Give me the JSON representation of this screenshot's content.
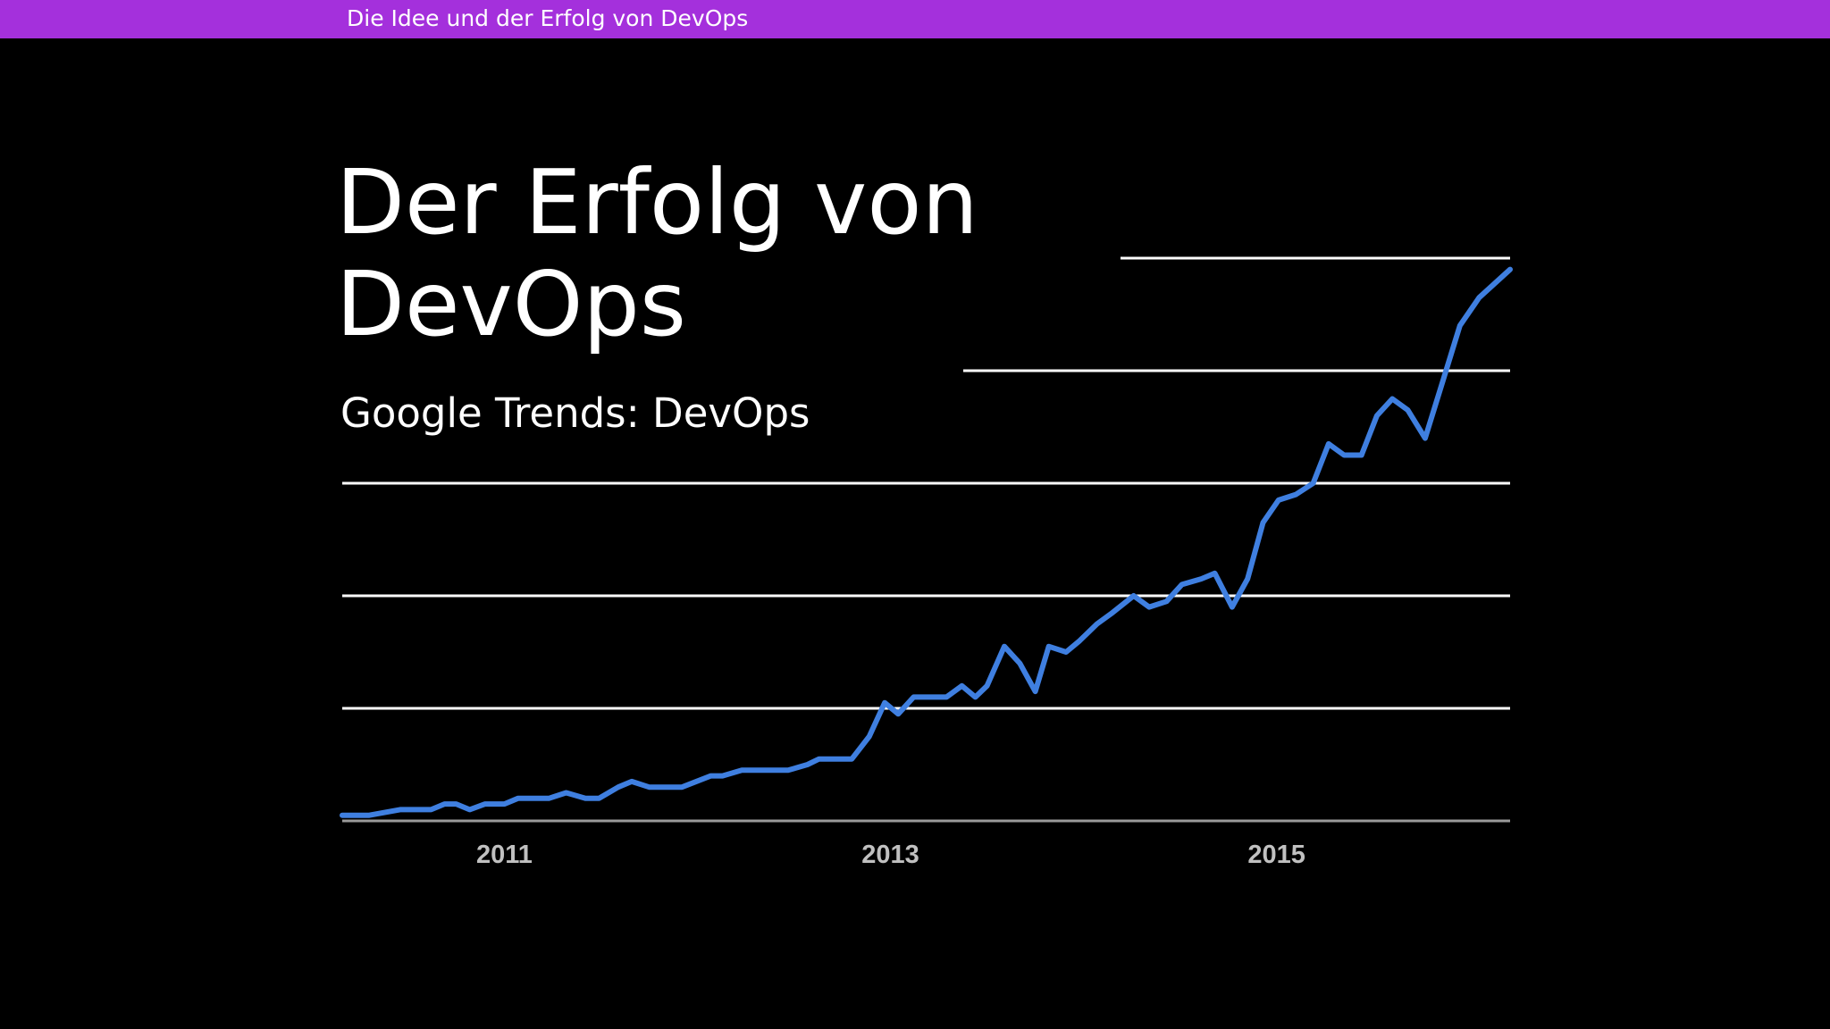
{
  "header": {
    "section_title": "Die Idee und der Erfolg von DevOps"
  },
  "slide": {
    "title_line1": "Der Erfolg von",
    "title_line2": "DevOps",
    "subtitle": "Google Trends: DevOps"
  },
  "colors": {
    "header_bar": "#a430dc",
    "background": "#000000",
    "line": "#3f7fe0",
    "gridline": "#ffffff",
    "tick_label": "#c0c0c0"
  },
  "chart_data": {
    "type": "line",
    "title": "",
    "xlabel": "",
    "ylabel": "",
    "x_tick_labels": [
      "2011",
      "2013",
      "2015"
    ],
    "x_tick_values": [
      2011,
      2013,
      2015
    ],
    "xlim": [
      2010.16,
      2016.21
    ],
    "ylim": [
      0,
      100
    ],
    "y_gridlines": [
      20,
      40,
      60,
      80,
      100
    ],
    "y_tick_labels_shown": false,
    "grid": true,
    "legend": "none",
    "series": [
      {
        "values": [
          [
            2010.16,
            1
          ],
          [
            2010.2,
            1
          ],
          [
            2010.3,
            1
          ],
          [
            2010.46,
            2
          ],
          [
            2010.56,
            2
          ],
          [
            2010.62,
            2
          ],
          [
            2010.69,
            3
          ],
          [
            2010.75,
            3
          ],
          [
            2010.82,
            2
          ],
          [
            2010.9,
            3
          ],
          [
            2011.0,
            3
          ],
          [
            2011.07,
            4
          ],
          [
            2011.16,
            4
          ],
          [
            2011.23,
            4
          ],
          [
            2011.32,
            5
          ],
          [
            2011.42,
            4
          ],
          [
            2011.49,
            4
          ],
          [
            2011.59,
            6
          ],
          [
            2011.66,
            7
          ],
          [
            2011.75,
            6
          ],
          [
            2011.82,
            6
          ],
          [
            2011.92,
            6
          ],
          [
            2012.07,
            8
          ],
          [
            2012.13,
            8
          ],
          [
            2012.23,
            9
          ],
          [
            2012.33,
            9
          ],
          [
            2012.47,
            9
          ],
          [
            2012.57,
            10
          ],
          [
            2012.63,
            11
          ],
          [
            2012.8,
            11
          ],
          [
            2012.89,
            15
          ],
          [
            2012.97,
            21
          ],
          [
            2013.04,
            19
          ],
          [
            2013.12,
            22
          ],
          [
            2013.29,
            22
          ],
          [
            2013.37,
            24
          ],
          [
            2013.44,
            22
          ],
          [
            2013.5,
            24
          ],
          [
            2013.59,
            31
          ],
          [
            2013.67,
            28
          ],
          [
            2013.75,
            23
          ],
          [
            2013.82,
            31
          ],
          [
            2013.91,
            30
          ],
          [
            2013.98,
            32
          ],
          [
            2014.07,
            35
          ],
          [
            2014.15,
            37
          ],
          [
            2014.26,
            40
          ],
          [
            2014.34,
            38
          ],
          [
            2014.43,
            39
          ],
          [
            2014.51,
            42
          ],
          [
            2014.61,
            43
          ],
          [
            2014.68,
            44
          ],
          [
            2014.77,
            38
          ],
          [
            2014.85,
            43
          ],
          [
            2014.93,
            53
          ],
          [
            2015.01,
            57
          ],
          [
            2015.1,
            58
          ],
          [
            2015.19,
            60
          ],
          [
            2015.27,
            67
          ],
          [
            2015.35,
            65
          ],
          [
            2015.44,
            65
          ],
          [
            2015.52,
            72
          ],
          [
            2015.6,
            75
          ],
          [
            2015.68,
            73
          ],
          [
            2015.77,
            68
          ],
          [
            2015.86,
            78
          ],
          [
            2015.95,
            88
          ],
          [
            2016.05,
            93
          ],
          [
            2016.21,
            98
          ]
        ]
      }
    ]
  }
}
